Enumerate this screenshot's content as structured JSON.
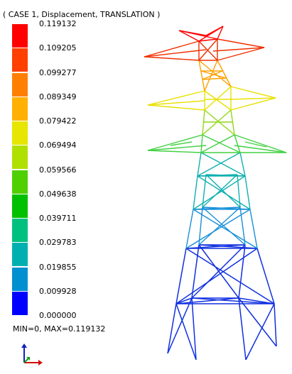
{
  "result": {
    "title": "( CASE 1, Displacement, TRANSLATION )",
    "min_max": "MIN=0, MAX=0.119132"
  },
  "legend": {
    "ticks": [
      "0.119132",
      "0.109205",
      "0.099277",
      "0.089349",
      "0.079422",
      "0.069494",
      "0.059566",
      "0.049638",
      "0.039711",
      "0.029783",
      "0.019855",
      "0.009928",
      "0.000000"
    ],
    "colors": [
      "#ff0000",
      "#ff4000",
      "#ff8000",
      "#ffb000",
      "#e6e600",
      "#b0e000",
      "#50d000",
      "#00c000",
      "#00c080",
      "#00b0b0",
      "#0090d0",
      "#0050f0",
      "#0000ff"
    ]
  },
  "icons": {
    "triad": "axis-triad-icon"
  }
}
